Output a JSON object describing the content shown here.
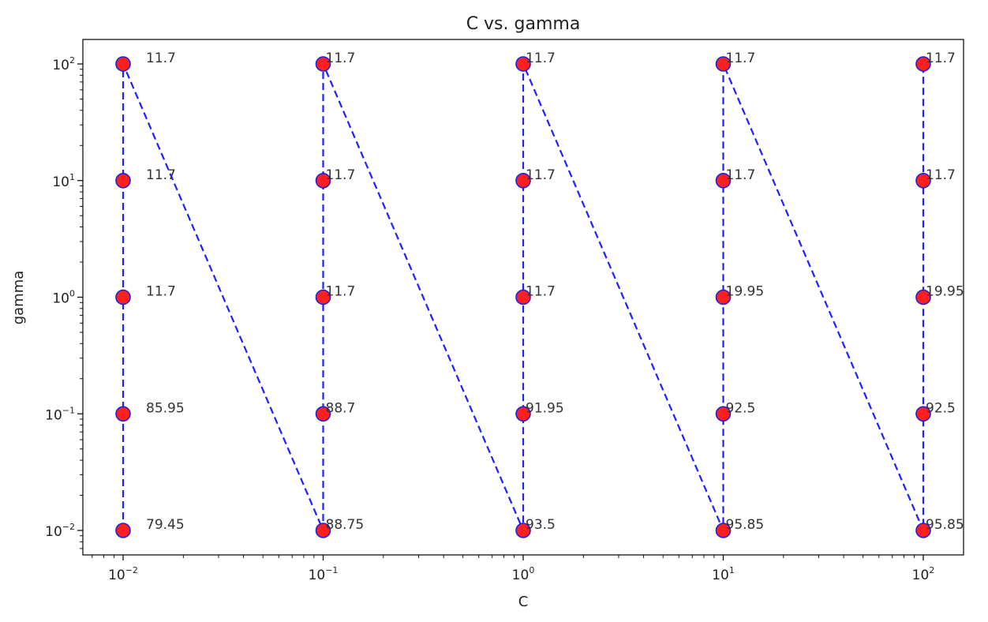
{
  "chart_data": {
    "type": "line",
    "title": "C vs. gamma",
    "xlabel": "C",
    "ylabel": "gamma",
    "xscale": "log",
    "yscale": "log",
    "x_ticks": [
      {
        "value": 0.01,
        "base": "10",
        "exp": "−2"
      },
      {
        "value": 0.1,
        "base": "10",
        "exp": "−1"
      },
      {
        "value": 1,
        "base": "10",
        "exp": "0"
      },
      {
        "value": 10,
        "base": "10",
        "exp": "1"
      },
      {
        "value": 100,
        "base": "10",
        "exp": "2"
      }
    ],
    "y_ticks": [
      {
        "value": 0.01,
        "base": "10",
        "exp": "−2"
      },
      {
        "value": 0.1,
        "base": "10",
        "exp": "−1"
      },
      {
        "value": 1,
        "base": "10",
        "exp": "0"
      },
      {
        "value": 10,
        "base": "10",
        "exp": "1"
      },
      {
        "value": 100,
        "base": "10",
        "exp": "2"
      }
    ],
    "line_color": "#1f1fff",
    "marker_face_color": "#ff1f1f",
    "marker_edge_color": "#2020e0",
    "line_style": "dashed",
    "grid": false,
    "points": [
      {
        "C": 0.01,
        "gamma": 0.01,
        "label": "79.45"
      },
      {
        "C": 0.01,
        "gamma": 0.1,
        "label": "85.95"
      },
      {
        "C": 0.01,
        "gamma": 1,
        "label": "11.7"
      },
      {
        "C": 0.01,
        "gamma": 10,
        "label": "11.7"
      },
      {
        "C": 0.01,
        "gamma": 100,
        "label": "11.7"
      },
      {
        "C": 0.1,
        "gamma": 0.01,
        "label": "88.75"
      },
      {
        "C": 0.1,
        "gamma": 0.1,
        "label": "88.7"
      },
      {
        "C": 0.1,
        "gamma": 1,
        "label": "11.7"
      },
      {
        "C": 0.1,
        "gamma": 10,
        "label": "11.7"
      },
      {
        "C": 0.1,
        "gamma": 100,
        "label": "11.7"
      },
      {
        "C": 1,
        "gamma": 0.01,
        "label": "93.5"
      },
      {
        "C": 1,
        "gamma": 0.1,
        "label": "91.95"
      },
      {
        "C": 1,
        "gamma": 1,
        "label": "11.7"
      },
      {
        "C": 1,
        "gamma": 10,
        "label": "11.7"
      },
      {
        "C": 1,
        "gamma": 100,
        "label": "11.7"
      },
      {
        "C": 10,
        "gamma": 0.01,
        "label": "95.85"
      },
      {
        "C": 10,
        "gamma": 0.1,
        "label": "92.5"
      },
      {
        "C": 10,
        "gamma": 1,
        "label": "19.95"
      },
      {
        "C": 10,
        "gamma": 10,
        "label": "11.7"
      },
      {
        "C": 10,
        "gamma": 100,
        "label": "11.7"
      },
      {
        "C": 100,
        "gamma": 0.01,
        "label": "95.85"
      },
      {
        "C": 100,
        "gamma": 0.1,
        "label": "92.5"
      },
      {
        "C": 100,
        "gamma": 1,
        "label": "19.95"
      },
      {
        "C": 100,
        "gamma": 10,
        "label": "11.7"
      },
      {
        "C": 100,
        "gamma": 100,
        "label": "11.7"
      }
    ]
  }
}
